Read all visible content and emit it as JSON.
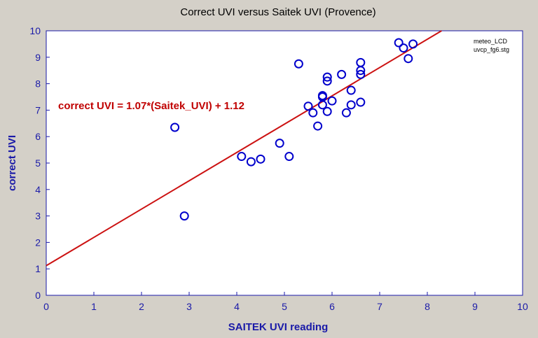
{
  "chart_data": {
    "type": "scatter",
    "title": "Correct UVI versus Saitek UVI (Provence)",
    "xlabel": "SAITEK UVI reading",
    "ylabel": "correct UVI",
    "xlim": [
      0,
      10
    ],
    "ylim": [
      0,
      10
    ],
    "xticks": [
      "0",
      "1",
      "2",
      "3",
      "4",
      "5",
      "6",
      "7",
      "8",
      "9",
      "10"
    ],
    "yticks": [
      "0",
      "1",
      "2",
      "3",
      "4",
      "5",
      "6",
      "7",
      "8",
      "9",
      "10"
    ],
    "grid": false,
    "legend": [
      "meteo_LCD",
      "uvcp_fg6.stg"
    ],
    "legend_position": "top-right",
    "regression": {
      "label": "correct UVI = 1.07*(Saitek_UVI) + 1.12",
      "slope": 1.07,
      "intercept": 1.12
    },
    "points": [
      {
        "x": 2.7,
        "y": 6.35
      },
      {
        "x": 2.9,
        "y": 3.0
      },
      {
        "x": 4.1,
        "y": 5.25
      },
      {
        "x": 4.3,
        "y": 5.05
      },
      {
        "x": 4.5,
        "y": 5.15
      },
      {
        "x": 4.9,
        "y": 5.75
      },
      {
        "x": 5.1,
        "y": 5.25
      },
      {
        "x": 5.3,
        "y": 8.75
      },
      {
        "x": 5.5,
        "y": 7.15
      },
      {
        "x": 5.6,
        "y": 6.9
      },
      {
        "x": 5.7,
        "y": 6.4
      },
      {
        "x": 5.8,
        "y": 7.2
      },
      {
        "x": 5.8,
        "y": 7.5
      },
      {
        "x": 5.8,
        "y": 7.55
      },
      {
        "x": 5.9,
        "y": 6.95
      },
      {
        "x": 5.9,
        "y": 8.1
      },
      {
        "x": 5.9,
        "y": 8.25
      },
      {
        "x": 6.0,
        "y": 7.35
      },
      {
        "x": 6.2,
        "y": 8.35
      },
      {
        "x": 6.3,
        "y": 6.9
      },
      {
        "x": 6.4,
        "y": 7.2
      },
      {
        "x": 6.4,
        "y": 7.75
      },
      {
        "x": 6.6,
        "y": 7.3
      },
      {
        "x": 6.6,
        "y": 8.35
      },
      {
        "x": 6.6,
        "y": 8.5
      },
      {
        "x": 6.6,
        "y": 8.8
      },
      {
        "x": 7.4,
        "y": 9.55
      },
      {
        "x": 7.5,
        "y": 9.35
      },
      {
        "x": 7.6,
        "y": 8.95
      },
      {
        "x": 7.7,
        "y": 9.5
      }
    ],
    "colors": {
      "background": "#d4d0c8",
      "plot": "#ffffff",
      "axis": "#1a1aa8",
      "marker": "#0000cc",
      "fit": "#cc1111"
    }
  }
}
